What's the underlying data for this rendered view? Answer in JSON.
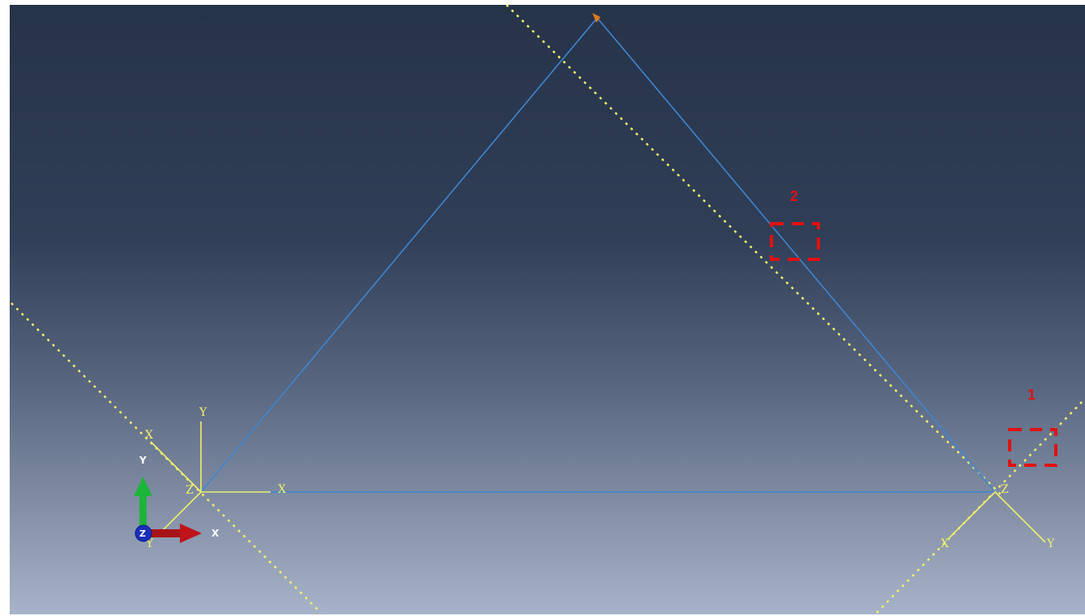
{
  "viewport": {
    "background_top": "#263349",
    "background_mid": "#3a4a64",
    "background_bottom": "#a5b1c6",
    "edge_color": "#3f86d0",
    "datum_color": "#f3f06a",
    "csys_color": "#f3f06a",
    "vertex_marker_color": "#e07a1a"
  },
  "csys": {
    "left": {
      "x_label": "X",
      "y_label": "Y",
      "z_label": "Z",
      "rotated_x_label": "X",
      "rotated_y_label": "Y"
    },
    "right": {
      "z_label": "Z",
      "rotated_x_label": "X",
      "rotated_y_label": "Y"
    }
  },
  "triad": {
    "x_label": "X",
    "y_label": "Y",
    "z_label": "Z",
    "x_color": "#c0141c",
    "y_color": "#1db43a",
    "z_color": "#1a2fb8"
  },
  "callouts": [
    {
      "label": "1",
      "color": "#e01212"
    },
    {
      "label": "2",
      "color": "#e01212"
    }
  ]
}
